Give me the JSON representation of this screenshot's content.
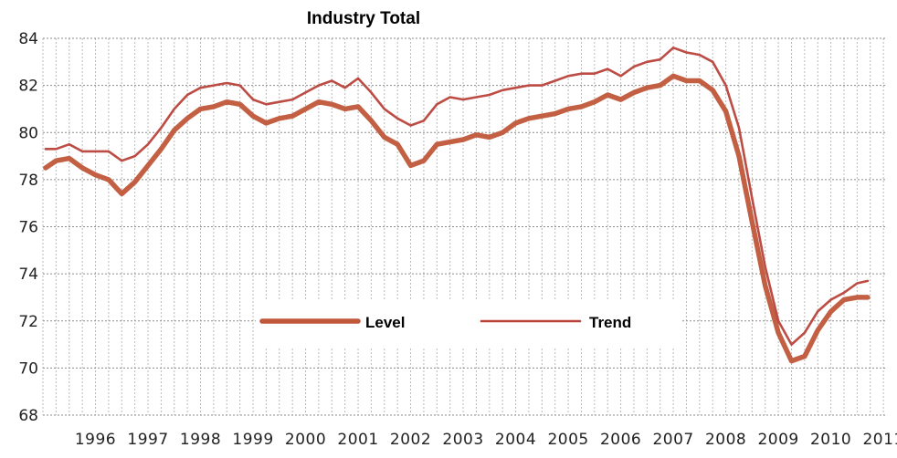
{
  "chart_data": {
    "type": "line",
    "title": "Industry Total",
    "xlabel": "",
    "ylabel": "",
    "ylim": [
      68,
      84
    ],
    "yticks": [
      68,
      70,
      72,
      74,
      76,
      78,
      80,
      82,
      84
    ],
    "xlim": [
      1995.5,
      2011.55
    ],
    "xticks": [
      "1996",
      "1997",
      "1998",
      "1999",
      "2000",
      "2001",
      "2002",
      "2003",
      "2004",
      "2005",
      "2006",
      "2007",
      "2008",
      "2009",
      "2010",
      "2011"
    ],
    "grid": true,
    "legend_position": "bottom-center",
    "series": [
      {
        "name": "Level",
        "color": "#c0573a",
        "line": "thick",
        "x": [
          1995.55,
          1995.75,
          1996.0,
          1996.25,
          1996.5,
          1996.75,
          1997.0,
          1997.25,
          1997.5,
          1997.75,
          1998.0,
          1998.25,
          1998.5,
          1998.75,
          1999.0,
          1999.25,
          1999.5,
          1999.75,
          2000.0,
          2000.25,
          2000.5,
          2000.75,
          2001.0,
          2001.25,
          2001.5,
          2001.75,
          2002.0,
          2002.25,
          2002.5,
          2002.75,
          2003.0,
          2003.25,
          2003.5,
          2003.75,
          2004.0,
          2004.25,
          2004.5,
          2004.75,
          2005.0,
          2005.25,
          2005.5,
          2005.75,
          2006.0,
          2006.25,
          2006.5,
          2006.75,
          2007.0,
          2007.25,
          2007.5,
          2007.75,
          2008.0,
          2008.25,
          2008.5,
          2008.75,
          2009.0,
          2009.25,
          2009.5,
          2009.75,
          2010.0,
          2010.25,
          2010.5,
          2010.75,
          2011.0,
          2011.2
        ],
        "values": [
          78.5,
          78.8,
          78.9,
          78.5,
          78.2,
          78.0,
          77.4,
          77.9,
          78.6,
          79.3,
          80.1,
          80.6,
          81.0,
          81.1,
          81.3,
          81.2,
          80.7,
          80.4,
          80.6,
          80.7,
          81.0,
          81.3,
          81.2,
          81.0,
          81.1,
          80.5,
          79.8,
          79.5,
          78.6,
          78.8,
          79.5,
          79.6,
          79.7,
          79.9,
          79.8,
          80.0,
          80.4,
          80.6,
          80.7,
          80.8,
          81.0,
          81.1,
          81.3,
          81.6,
          81.4,
          81.7,
          81.9,
          82.0,
          82.4,
          82.2,
          82.2,
          81.8,
          80.9,
          79.0,
          76.2,
          73.5,
          71.5,
          70.3,
          70.5,
          71.6,
          72.4,
          72.9,
          73.0,
          73.0
        ]
      },
      {
        "name": "Trend",
        "color": "#b8423a",
        "line": "thin",
        "x": [
          1995.55,
          1995.75,
          1996.0,
          1996.25,
          1996.5,
          1996.75,
          1997.0,
          1997.25,
          1997.5,
          1997.75,
          1998.0,
          1998.25,
          1998.5,
          1998.75,
          1999.0,
          1999.25,
          1999.5,
          1999.75,
          2000.0,
          2000.25,
          2000.5,
          2000.75,
          2001.0,
          2001.25,
          2001.5,
          2001.75,
          2002.0,
          2002.25,
          2002.5,
          2002.75,
          2003.0,
          2003.25,
          2003.5,
          2003.75,
          2004.0,
          2004.25,
          2004.5,
          2004.75,
          2005.0,
          2005.25,
          2005.5,
          2005.75,
          2006.0,
          2006.25,
          2006.5,
          2006.75,
          2007.0,
          2007.25,
          2007.5,
          2007.75,
          2008.0,
          2008.25,
          2008.5,
          2008.75,
          2009.0,
          2009.25,
          2009.5,
          2009.75,
          2010.0,
          2010.25,
          2010.5,
          2010.75,
          2011.0,
          2011.2
        ],
        "values": [
          79.3,
          79.3,
          79.5,
          79.2,
          79.2,
          79.2,
          78.8,
          79.0,
          79.5,
          80.2,
          81.0,
          81.6,
          81.9,
          82.0,
          82.1,
          82.0,
          81.4,
          81.2,
          81.3,
          81.4,
          81.7,
          82.0,
          82.2,
          81.9,
          82.3,
          81.7,
          81.0,
          80.6,
          80.3,
          80.5,
          81.2,
          81.5,
          81.4,
          81.5,
          81.6,
          81.8,
          81.9,
          82.0,
          82.0,
          82.2,
          82.4,
          82.5,
          82.5,
          82.7,
          82.4,
          82.8,
          83.0,
          83.1,
          83.6,
          83.4,
          83.3,
          83.0,
          82.0,
          80.2,
          77.2,
          74.3,
          72.0,
          71.0,
          71.5,
          72.4,
          72.9,
          73.2,
          73.6,
          73.7
        ]
      }
    ]
  }
}
